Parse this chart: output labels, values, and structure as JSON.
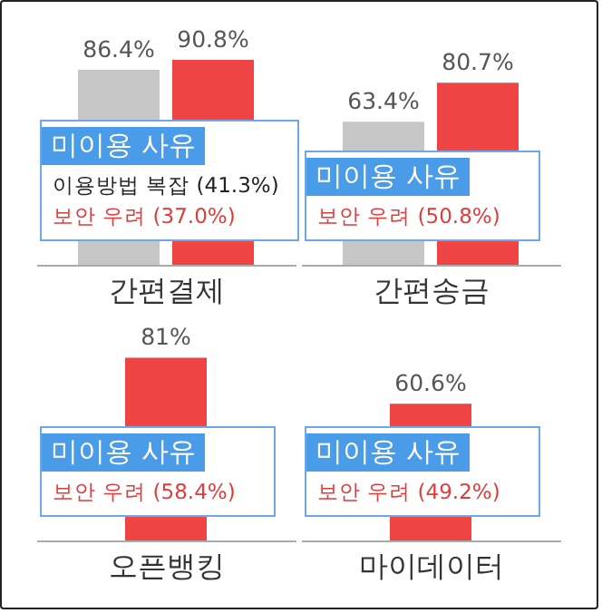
{
  "chart_data": [
    {
      "type": "bar",
      "categories": [
        null,
        null
      ],
      "values": [
        86.4,
        90.8
      ],
      "colors": [
        "#c6c6c6",
        "#ee4444"
      ],
      "value_labels": [
        "86.4%",
        "90.8%"
      ],
      "xlabel": "간편결제",
      "annotations": [
        "미이용 사유",
        "이용방법 복잡 (41.3%)",
        "보안 우려 (37.0%)"
      ]
    },
    {
      "type": "bar",
      "categories": [
        null,
        null
      ],
      "values": [
        63.4,
        80.7
      ],
      "colors": [
        "#c6c6c6",
        "#ee4444"
      ],
      "value_labels": [
        "63.4%",
        "80.7%"
      ],
      "xlabel": "간편송금",
      "annotations": [
        "미이용 사유",
        "보안 우려 (50.8%)"
      ]
    },
    {
      "type": "bar",
      "categories": [
        null
      ],
      "values": [
        81
      ],
      "colors": [
        "#ee4444"
      ],
      "value_labels": [
        "81%"
      ],
      "xlabel": "오픈뱅킹",
      "annotations": [
        "미이용 사유",
        "보안 우려 (58.4%)"
      ]
    },
    {
      "type": "bar",
      "categories": [
        null
      ],
      "values": [
        60.6
      ],
      "colors": [
        "#ee4444"
      ],
      "value_labels": [
        "60.6%"
      ],
      "xlabel": "마이데이터",
      "annotations": [
        "미이용 사유",
        "보안 우려 (49.2%)"
      ]
    }
  ]
}
